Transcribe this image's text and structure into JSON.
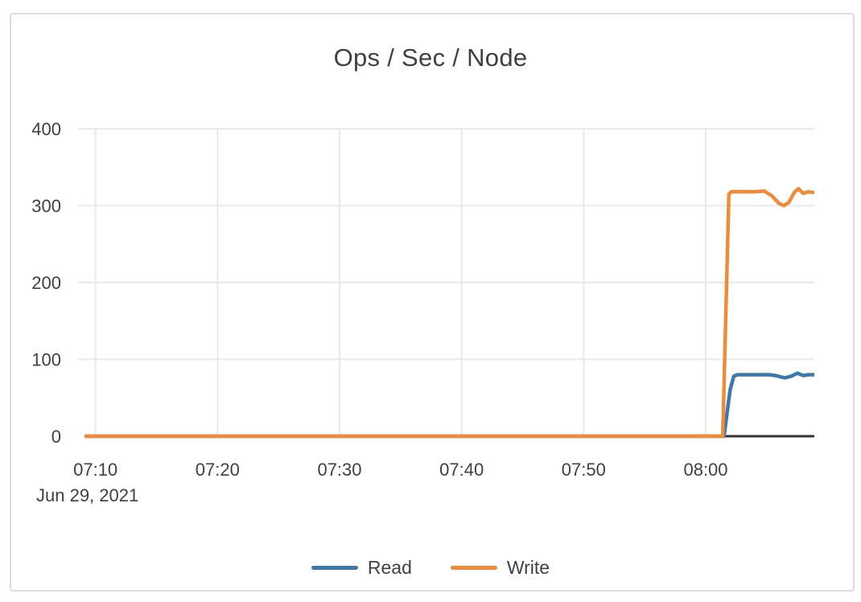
{
  "chart_data": {
    "type": "line",
    "title": "Ops / Sec / Node",
    "grid": true,
    "legend_position": "bottom",
    "x_axis": {
      "date_label": "Jun 29, 2021",
      "range_minutes_after_0700": [
        9.1,
        68.9
      ],
      "ticks": [
        {
          "minutes": 10,
          "label": "07:10"
        },
        {
          "minutes": 20,
          "label": "07:20"
        },
        {
          "minutes": 30,
          "label": "07:30"
        },
        {
          "minutes": 40,
          "label": "07:40"
        },
        {
          "minutes": 50,
          "label": "07:50"
        },
        {
          "minutes": 60,
          "label": "08:00"
        }
      ]
    },
    "y_axis": {
      "range": [
        0,
        400
      ],
      "ticks": [
        0,
        100,
        200,
        300,
        400
      ]
    },
    "series": [
      {
        "name": "Read",
        "color": "#3d78ab",
        "points_minutes_value": [
          [
            9.1,
            0
          ],
          [
            20,
            0
          ],
          [
            30,
            0
          ],
          [
            40,
            0
          ],
          [
            50,
            0
          ],
          [
            55,
            0
          ],
          [
            60,
            0
          ],
          [
            61.5,
            0
          ],
          [
            62.0,
            60
          ],
          [
            62.3,
            78
          ],
          [
            62.6,
            80
          ],
          [
            63.5,
            80
          ],
          [
            64.5,
            80
          ],
          [
            65.2,
            80
          ],
          [
            65.7,
            79
          ],
          [
            66.2,
            77
          ],
          [
            66.5,
            76
          ],
          [
            67.0,
            78
          ],
          [
            67.5,
            82
          ],
          [
            68.0,
            79
          ],
          [
            68.4,
            80
          ],
          [
            68.9,
            80
          ]
        ]
      },
      {
        "name": "Write",
        "color": "#ee8c39",
        "points_minutes_value": [
          [
            9.1,
            0
          ],
          [
            15,
            0
          ],
          [
            20,
            0
          ],
          [
            25,
            0
          ],
          [
            30,
            0
          ],
          [
            35,
            0
          ],
          [
            40,
            0
          ],
          [
            45,
            0
          ],
          [
            50,
            0
          ],
          [
            55,
            0
          ],
          [
            58,
            0
          ],
          [
            60,
            0
          ],
          [
            61.4,
            0
          ],
          [
            61.9,
            315
          ],
          [
            62.1,
            318
          ],
          [
            63.0,
            318
          ],
          [
            64.0,
            318
          ],
          [
            64.8,
            319
          ],
          [
            65.4,
            313
          ],
          [
            66.0,
            303
          ],
          [
            66.4,
            300
          ],
          [
            66.8,
            304
          ],
          [
            67.3,
            318
          ],
          [
            67.6,
            322
          ],
          [
            68.0,
            316
          ],
          [
            68.4,
            318
          ],
          [
            68.9,
            317
          ]
        ]
      }
    ]
  },
  "colors": {
    "text": "#404040",
    "gridline": "#e9e9e9",
    "axis_line": "#333333",
    "card_border": "#dcdcdc"
  }
}
